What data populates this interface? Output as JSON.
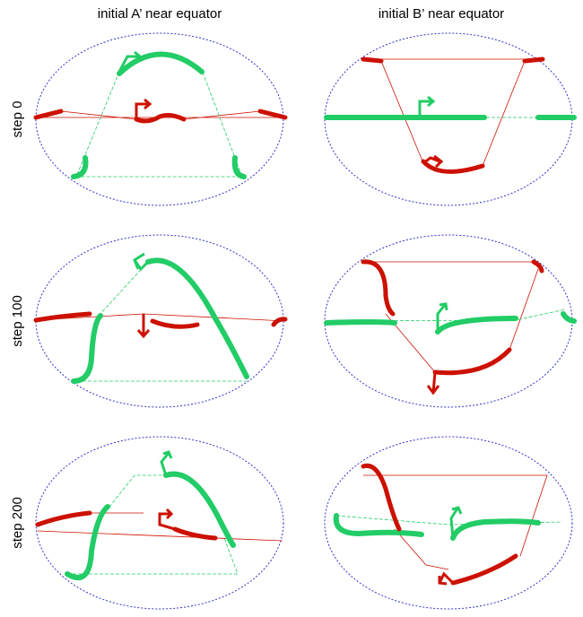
{
  "columns": [
    "initial A’ near equator",
    "initial B’ near equator"
  ],
  "rows": [
    "step 0",
    "step 100",
    "step 200"
  ]
}
